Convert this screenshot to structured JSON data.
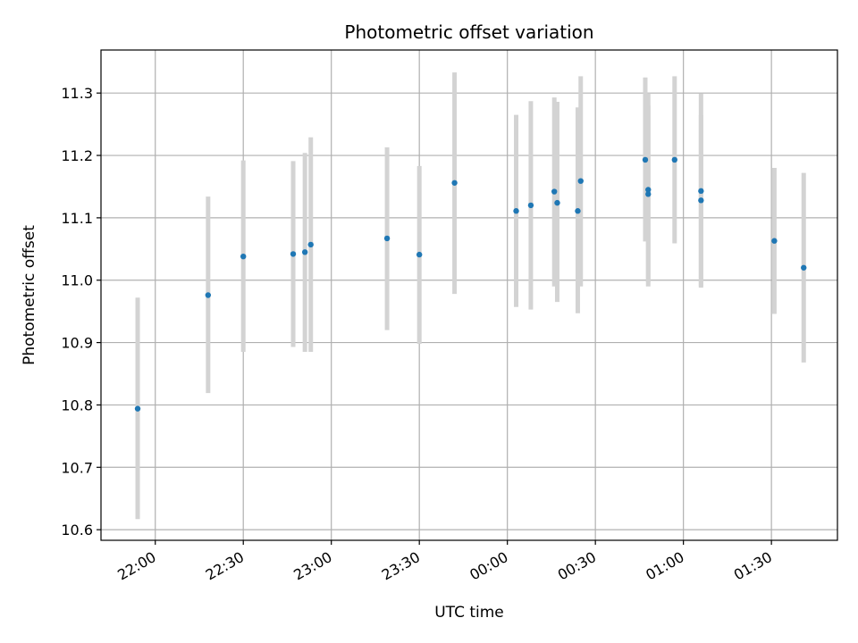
{
  "chart_data": {
    "type": "scatter",
    "title": "Photometric offset variation",
    "xlabel": "UTC time",
    "ylabel": "Photometric offset",
    "grid": true,
    "point_color": "#1f77b4",
    "errorbar_color": "#d3d3d3",
    "x_ticks": [
      "22:00",
      "22:30",
      "23:00",
      "23:30",
      "00:00",
      "00:30",
      "01:00",
      "01:30"
    ],
    "xlim": [
      "21:41:30",
      "01:52:30"
    ],
    "y_ticks": [
      "10.6",
      "10.7",
      "10.8",
      "10.9",
      "11.0",
      "11.1",
      "11.2",
      "11.3"
    ],
    "ylim": [
      10.583,
      11.369
    ],
    "points": [
      {
        "x": "21:54",
        "y": 10.794,
        "err_low": 10.617,
        "err_high": 10.972
      },
      {
        "x": "22:18",
        "y": 10.976,
        "err_low": 10.819,
        "err_high": 11.134
      },
      {
        "x": "22:30",
        "y": 11.038,
        "err_low": 10.885,
        "err_high": 11.192
      },
      {
        "x": "22:47",
        "y": 11.042,
        "err_low": 10.893,
        "err_high": 11.191
      },
      {
        "x": "22:51",
        "y": 11.045,
        "err_low": 10.885,
        "err_high": 11.204
      },
      {
        "x": "22:53",
        "y": 11.057,
        "err_low": 10.885,
        "err_high": 11.229
      },
      {
        "x": "23:19",
        "y": 11.067,
        "err_low": 10.92,
        "err_high": 11.213
      },
      {
        "x": "23:30",
        "y": 11.041,
        "err_low": 10.898,
        "err_high": 11.183
      },
      {
        "x": "23:42",
        "y": 11.156,
        "err_low": 10.978,
        "err_high": 11.333
      },
      {
        "x": "00:03",
        "y": 11.111,
        "err_low": 10.957,
        "err_high": 11.265
      },
      {
        "x": "00:08",
        "y": 11.12,
        "err_low": 10.953,
        "err_high": 11.287
      },
      {
        "x": "00:16",
        "y": 11.142,
        "err_low": 10.99,
        "err_high": 11.293
      },
      {
        "x": "00:17",
        "y": 11.124,
        "err_low": 10.965,
        "err_high": 11.286
      },
      {
        "x": "00:24",
        "y": 11.111,
        "err_low": 10.947,
        "err_high": 11.277
      },
      {
        "x": "00:25",
        "y": 11.159,
        "err_low": 10.99,
        "err_high": 11.327
      },
      {
        "x": "00:47",
        "y": 11.193,
        "err_low": 11.062,
        "err_high": 11.325
      },
      {
        "x": "00:48",
        "y": 11.145,
        "err_low": 10.99,
        "err_high": 11.3
      },
      {
        "x": "00:48",
        "y": 11.138,
        "err_low": 10.997,
        "err_high": 11.28
      },
      {
        "x": "00:57",
        "y": 11.193,
        "err_low": 11.059,
        "err_high": 11.327
      },
      {
        "x": "01:06",
        "y": 11.128,
        "err_low": 10.99,
        "err_high": 11.265
      },
      {
        "x": "01:06",
        "y": 11.143,
        "err_low": 10.988,
        "err_high": 11.299
      },
      {
        "x": "01:31",
        "y": 11.063,
        "err_low": 10.946,
        "err_high": 11.18
      },
      {
        "x": "01:41",
        "y": 11.02,
        "err_low": 10.868,
        "err_high": 11.172
      }
    ]
  }
}
